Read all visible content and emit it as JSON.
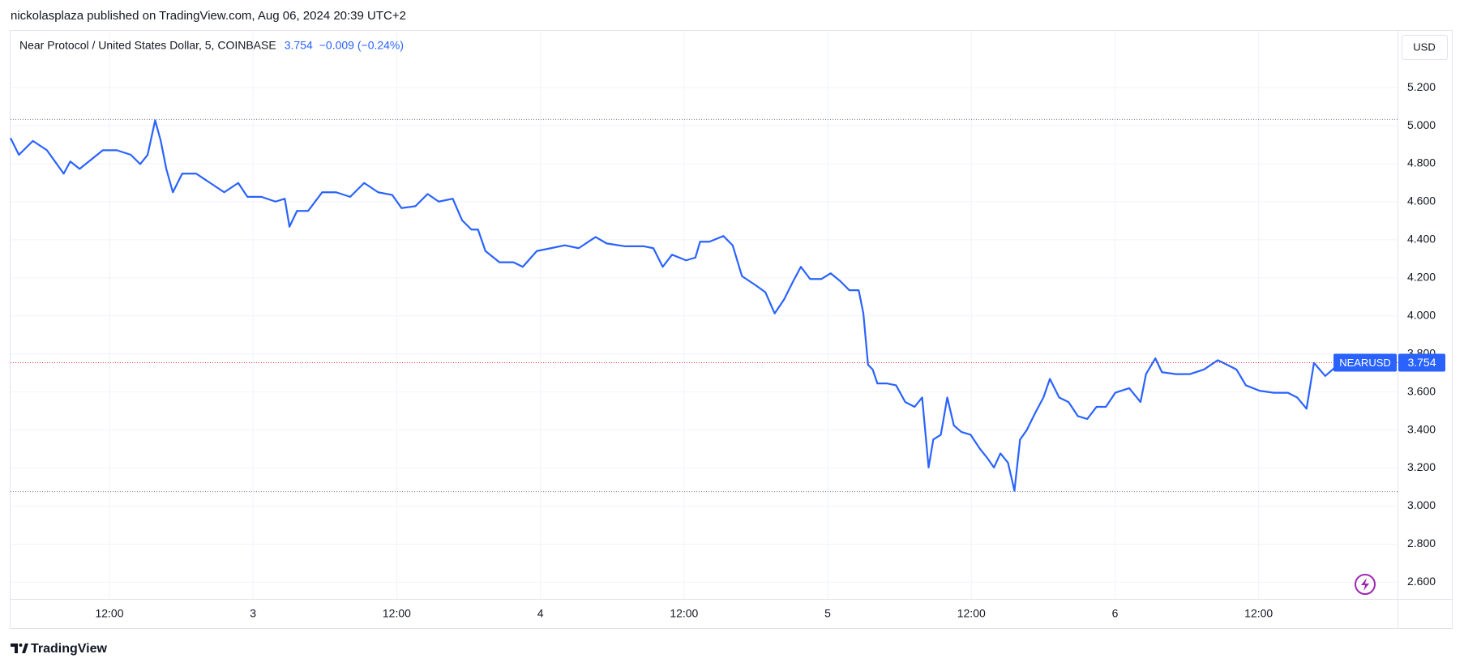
{
  "chart_data": {
    "type": "line",
    "subtitle": "nickolasplaza published on TradingView.com, Aug 06, 2024 20:39 UTC+2",
    "title": "Near Protocol / United States Dollar, 5, COINBASE",
    "last": 3.754,
    "change": "−0.009 (−0.24%)",
    "currency": "USD",
    "footer": "TradingView",
    "high": 5.033,
    "low": 3.076,
    "grid": true,
    "x": [
      3.74,
      4.44,
      5.61,
      6.78,
      8.18,
      8.73,
      9.51,
      10.28,
      11.45,
      12.62,
      13.79,
      14.57,
      15.19,
      15.82,
      16.29,
      16.75,
      17.3,
      18.08,
      19.25,
      20.42,
      21.59,
      22.76,
      23.53,
      24.7,
      25.87,
      26.65,
      27.04,
      27.67,
      28.6,
      29.77,
      30.94,
      32.11,
      33.28,
      34.45,
      35.62,
      36.4,
      37.56,
      38.58,
      39.51,
      40.68,
      41.46,
      42.24,
      42.79,
      43.41,
      44.58,
      45.75,
      46.53,
      47.7,
      48.87,
      50.04,
      51.2,
      52.61,
      53.54,
      55.1,
      56.66,
      57.44,
      58.22,
      59.0,
      60.17,
      60.95,
      61.34,
      62.12,
      63.29,
      64.06,
      64.84,
      66.01,
      66.79,
      67.57,
      68.35,
      69.13,
      69.76,
      70.53,
      71.47,
      72.25,
      73.03,
      73.81,
      74.59,
      74.98,
      75.37,
      75.76,
      76.15,
      76.93,
      77.71,
      78.48,
      79.26,
      79.89,
      80.43,
      80.82,
      81.45,
      81.99,
      82.54,
      83.16,
      83.94,
      84.72,
      85.34,
      85.89,
      86.43,
      87.06,
      87.6,
      88.07,
      88.62,
      89.4,
      90.02,
      90.56,
      91.34,
      92.12,
      92.9,
      93.68,
      94.46,
      95.24,
      96.02,
      97.19,
      98.13,
      98.59,
      99.37,
      99.92,
      101.09,
      102.26,
      103.43,
      104.59,
      105.37,
      106.15,
      106.93,
      108.1,
      109.27,
      110.44,
      111.22,
      112.0,
      112.62,
      113.56,
      114.18,
      114.73
    ],
    "series": [
      {
        "name": "NEARUSD",
        "color": "#2962ff",
        "values": [
          4.935,
          4.847,
          4.92,
          4.871,
          4.748,
          4.812,
          4.773,
          4.812,
          4.871,
          4.871,
          4.847,
          4.798,
          4.847,
          5.028,
          4.92,
          4.773,
          4.65,
          4.748,
          4.748,
          4.699,
          4.65,
          4.699,
          4.626,
          4.626,
          4.601,
          4.616,
          4.469,
          4.552,
          4.552,
          4.65,
          4.65,
          4.626,
          4.699,
          4.65,
          4.636,
          4.567,
          4.577,
          4.641,
          4.601,
          4.616,
          4.503,
          4.454,
          4.454,
          4.341,
          4.282,
          4.282,
          4.258,
          4.341,
          4.356,
          4.371,
          4.356,
          4.415,
          4.381,
          4.366,
          4.366,
          4.356,
          4.258,
          4.322,
          4.292,
          4.307,
          4.39,
          4.39,
          4.42,
          4.371,
          4.209,
          4.16,
          4.125,
          4.013,
          4.086,
          4.184,
          4.258,
          4.194,
          4.194,
          4.224,
          4.184,
          4.135,
          4.135,
          4.013,
          3.743,
          3.718,
          3.645,
          3.645,
          3.635,
          3.547,
          3.522,
          3.571,
          3.203,
          3.35,
          3.375,
          3.571,
          3.424,
          3.39,
          3.375,
          3.301,
          3.252,
          3.203,
          3.277,
          3.228,
          3.081,
          3.35,
          3.399,
          3.498,
          3.571,
          3.669,
          3.571,
          3.547,
          3.473,
          3.458,
          3.522,
          3.522,
          3.596,
          3.62,
          3.547,
          3.694,
          3.777,
          3.704,
          3.694,
          3.694,
          3.718,
          3.767,
          3.743,
          3.718,
          3.635,
          3.606,
          3.596,
          3.596,
          3.571,
          3.512,
          3.753,
          3.684,
          3.718,
          3.754
        ]
      }
    ],
    "xlim": [
      3.74,
      119.6
    ],
    "xticks": [
      {
        "value": 12,
        "label": "12:00"
      },
      {
        "value": 24,
        "label": "3"
      },
      {
        "value": 36,
        "label": "12:00"
      },
      {
        "value": 48,
        "label": "4"
      },
      {
        "value": 60,
        "label": "12:00"
      },
      {
        "value": 72,
        "label": "5"
      },
      {
        "value": 84,
        "label": "12:00"
      },
      {
        "value": 96,
        "label": "6"
      },
      {
        "value": 108,
        "label": "12:00"
      }
    ],
    "ylim": [
      2.512,
      5.499
    ],
    "yticks": [
      {
        "value": 2.6,
        "label": "2.600"
      },
      {
        "value": 2.8,
        "label": "2.800"
      },
      {
        "value": 3.0,
        "label": "3.000"
      },
      {
        "value": 3.2,
        "label": "3.200"
      },
      {
        "value": 3.4,
        "label": "3.400"
      },
      {
        "value": 3.6,
        "label": "3.600"
      },
      {
        "value": 3.8,
        "label": "3.800"
      },
      {
        "value": 4.0,
        "label": "4.000"
      },
      {
        "value": 4.2,
        "label": "4.200"
      },
      {
        "value": 4.4,
        "label": "4.400"
      },
      {
        "value": 4.6,
        "label": "4.600"
      },
      {
        "value": 4.8,
        "label": "4.800"
      },
      {
        "value": 5.0,
        "label": "5.000"
      },
      {
        "value": 5.2,
        "label": "5.200"
      }
    ]
  }
}
